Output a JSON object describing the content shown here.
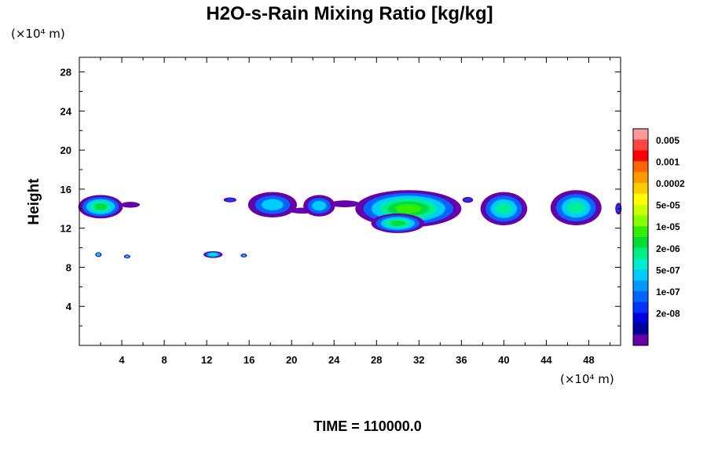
{
  "chart_data": {
    "type": "heatmap",
    "title": "H2O-s-Rain Mixing Ratio [kg/kg]",
    "x_unit_label": "(×10⁴ m)",
    "y_unit_label": "(×10⁴ m)",
    "ylabel": "Height",
    "xlabel": "",
    "footer": "TIME = 110000.0",
    "xlim": [
      0,
      51
    ],
    "ylim": [
      0,
      29.5
    ],
    "x_ticks": [
      4,
      8,
      12,
      16,
      20,
      24,
      28,
      32,
      36,
      40,
      44,
      48
    ],
    "y_ticks": [
      4,
      8,
      12,
      16,
      20,
      24,
      28
    ],
    "colorbar": {
      "labels": [
        "0.005",
        "0.001",
        "0.0002",
        "5e-05",
        "1e-05",
        "2e-06",
        "5e-07",
        "1e-07",
        "2e-08"
      ],
      "colors_top_to_bottom": [
        "#ff9999",
        "#ff4444",
        "#ff0000",
        "#ff6600",
        "#ff9900",
        "#ffcc00",
        "#ffff00",
        "#ccff00",
        "#88ff00",
        "#33ee00",
        "#00dd33",
        "#00ee88",
        "#00eecc",
        "#00ccff",
        "#0099ff",
        "#0066ff",
        "#0033ff",
        "#0000dd",
        "#000099",
        "#6600aa"
      ]
    },
    "features": [
      {
        "x": 2.0,
        "y": 14.2,
        "w": 4.2,
        "h": 2.4,
        "level": "5e-06"
      },
      {
        "x": 4.8,
        "y": 14.4,
        "w": 1.8,
        "h": 0.6,
        "level": "2e-08"
      },
      {
        "x": 14.2,
        "y": 14.9,
        "w": 1.2,
        "h": 0.5,
        "level": "1e-07"
      },
      {
        "x": 18.2,
        "y": 14.4,
        "w": 4.6,
        "h": 2.6,
        "level": "5e-07"
      },
      {
        "x": 21.0,
        "y": 13.8,
        "w": 2.4,
        "h": 0.6,
        "level": "2e-08"
      },
      {
        "x": 22.6,
        "y": 14.3,
        "w": 3.0,
        "h": 2.2,
        "level": "5e-07"
      },
      {
        "x": 25.0,
        "y": 14.5,
        "w": 2.8,
        "h": 0.7,
        "level": "2e-08"
      },
      {
        "x": 31.0,
        "y": 14.0,
        "w": 10.0,
        "h": 3.8,
        "level": "1e-05"
      },
      {
        "x": 30.0,
        "y": 12.5,
        "w": 5.0,
        "h": 2.0,
        "level": "5e-06"
      },
      {
        "x": 36.6,
        "y": 14.9,
        "w": 1.0,
        "h": 0.6,
        "level": "1e-07"
      },
      {
        "x": 40.0,
        "y": 14.0,
        "w": 4.4,
        "h": 3.4,
        "level": "2e-06"
      },
      {
        "x": 46.8,
        "y": 14.1,
        "w": 4.8,
        "h": 3.6,
        "level": "2e-06"
      },
      {
        "x": 50.8,
        "y": 14.0,
        "w": 0.6,
        "h": 1.2,
        "level": "1e-07"
      },
      {
        "x": 1.8,
        "y": 9.3,
        "w": 0.6,
        "h": 0.5,
        "level": "2e-06"
      },
      {
        "x": 4.5,
        "y": 9.1,
        "w": 0.6,
        "h": 0.4,
        "level": "5e-07"
      },
      {
        "x": 12.6,
        "y": 9.3,
        "w": 1.8,
        "h": 0.7,
        "level": "2e-06"
      },
      {
        "x": 15.5,
        "y": 9.2,
        "w": 0.6,
        "h": 0.4,
        "level": "5e-07"
      }
    ]
  }
}
